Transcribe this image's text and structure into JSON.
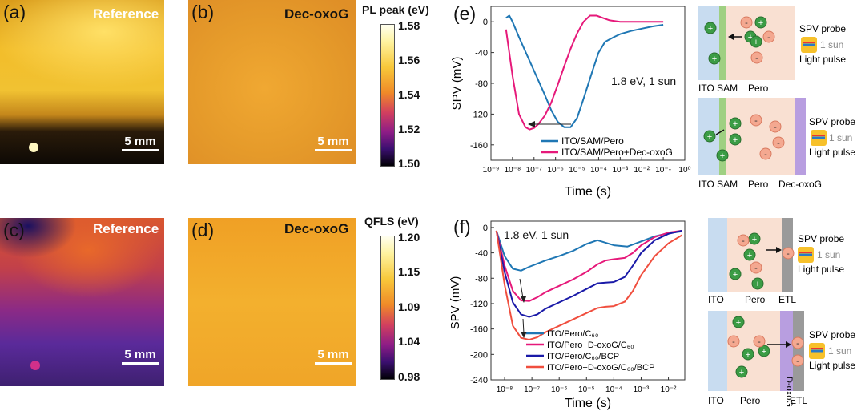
{
  "figure": {
    "panels": {
      "a": {
        "label": "(a)",
        "title": "Reference",
        "scale": "5 mm"
      },
      "b": {
        "label": "(b)",
        "title": "Dec-oxoG",
        "scale": "5 mm"
      },
      "c": {
        "label": "(c)",
        "title": "Reference",
        "scale": "5 mm"
      },
      "d": {
        "label": "(d)",
        "title": "Dec-oxoG",
        "scale": "5 mm"
      },
      "e": {
        "label": "(e)"
      },
      "f": {
        "label": "(f)"
      }
    },
    "colorbar_top": {
      "title": "PL peak (eV)",
      "ticks": [
        "1.58",
        "1.56",
        "1.54",
        "1.52",
        "1.50"
      ]
    },
    "colorbar_bottom": {
      "title": "QFLS (eV)",
      "ticks": [
        "1.20",
        "1.15",
        "1.09",
        "1.04",
        "0.98"
      ]
    },
    "schematic_e1": {
      "left": "ITO SAM",
      "middle": "Pero",
      "probe": "SPV probe",
      "sun": "1 sun",
      "pulse": "Light pulse"
    },
    "schematic_e2": {
      "left": "ITO SAM",
      "middle": "Pero",
      "right": "Dec-oxoG",
      "probe": "SPV probe",
      "sun": "1 sun",
      "pulse": "Light pulse"
    },
    "schematic_f1": {
      "left": "ITO",
      "middle": "Pero",
      "right": "ETL",
      "probe": "SPV probe",
      "sun": "1 sun",
      "pulse": "Light pulse"
    },
    "schematic_f2": {
      "left": "ITO",
      "middle": "Pero",
      "right": "ETL",
      "vertical": "D-oxoG",
      "probe": "SPV probe",
      "sun": "1 sun",
      "pulse": "Light pulse"
    }
  },
  "chart_data": [
    {
      "id": "e",
      "type": "line",
      "xscale": "log",
      "xlabel": "Time (s)",
      "ylabel": "SPV (mV)",
      "xlim": [
        -9,
        0
      ],
      "ylim": [
        -180,
        20
      ],
      "xtick_exps": [
        -9,
        -8,
        -7,
        -6,
        -5,
        -4,
        -3,
        -2,
        -1,
        0
      ],
      "xtick_labels": [
        "10⁻⁹",
        "10⁻⁸",
        "10⁻⁷",
        "10⁻⁶",
        "10⁻⁵",
        "10⁻⁴",
        "10⁻³",
        "10⁻²",
        "10⁻¹",
        "10⁰"
      ],
      "yticks": [
        0,
        -40,
        -80,
        -120,
        -160
      ],
      "annotation": "1.8 eV, 1 sun",
      "series": [
        {
          "name": "ITO/SAM/Pero",
          "color": "#1f77b4",
          "x": [
            -8.3,
            -8.15,
            -8.0,
            -7.7,
            -7.3,
            -6.9,
            -6.5,
            -6.2,
            -5.9,
            -5.6,
            -5.3,
            -5.0,
            -4.7,
            -4.3,
            -4.0,
            -3.7,
            -3.3,
            -3.0,
            -2.5,
            -2.0,
            -1.5,
            -1.0
          ],
          "y": [
            5,
            8,
            0,
            -20,
            -45,
            -70,
            -95,
            -115,
            -130,
            -137,
            -137,
            -125,
            -100,
            -65,
            -40,
            -26,
            -20,
            -16,
            -12,
            -9,
            -6,
            -4
          ]
        },
        {
          "name": "ITO/SAM/Pero+Dec-oxoG",
          "color": "#e6197a",
          "x": [
            -8.3,
            -8.0,
            -7.7,
            -7.4,
            -7.2,
            -7.0,
            -6.8,
            -6.5,
            -6.2,
            -5.9,
            -5.6,
            -5.3,
            -5.0,
            -4.7,
            -4.4,
            -4.1,
            -3.8,
            -3.5,
            -3.0,
            -2.5,
            -2.0,
            -1.5,
            -1.0
          ],
          "y": [
            -10,
            -70,
            -120,
            -137,
            -140,
            -138,
            -133,
            -122,
            -105,
            -82,
            -58,
            -35,
            -15,
            0,
            8,
            8,
            5,
            2,
            0,
            0,
            0,
            0,
            0
          ]
        }
      ]
    },
    {
      "id": "f",
      "type": "line",
      "xscale": "log",
      "xlabel": "Time (s)",
      "ylabel": "SPV (mV)",
      "xlim": [
        -8.5,
        -1.4
      ],
      "ylim": [
        -240,
        10
      ],
      "xtick_exps": [
        -8,
        -7,
        -6,
        -5,
        -4,
        -3,
        -2
      ],
      "xtick_labels": [
        "10⁻⁸",
        "10⁻⁷",
        "10⁻⁶",
        "10⁻⁵",
        "10⁻⁴",
        "10⁻³",
        "10⁻²"
      ],
      "yticks": [
        0,
        -40,
        -80,
        -120,
        -160,
        -200,
        -240
      ],
      "annotation": "1.8 eV, 1 sun",
      "series": [
        {
          "name": "ITO/Pero/C₆₀",
          "color": "#1f77b4",
          "x": [
            -8.3,
            -8.0,
            -7.7,
            -7.4,
            -7.1,
            -6.8,
            -6.5,
            -6.0,
            -5.5,
            -5.0,
            -4.6,
            -4.3,
            -4.0,
            -3.5,
            -3.0,
            -2.5,
            -2.0,
            -1.5
          ],
          "y": [
            -5,
            -45,
            -65,
            -68,
            -62,
            -57,
            -52,
            -45,
            -37,
            -26,
            -20,
            -24,
            -28,
            -30,
            -22,
            -14,
            -9,
            -6
          ]
        },
        {
          "name": "ITO/Pero+D-oxoG/C₆₀",
          "color": "#e6197a",
          "x": [
            -8.3,
            -8.0,
            -7.7,
            -7.4,
            -7.1,
            -6.8,
            -6.5,
            -6.0,
            -5.5,
            -5.0,
            -4.6,
            -4.3,
            -4.0,
            -3.6,
            -3.3,
            -3.0,
            -2.5,
            -2.0,
            -1.5
          ],
          "y": [
            -5,
            -60,
            -100,
            -115,
            -116,
            -110,
            -102,
            -92,
            -82,
            -70,
            -58,
            -52,
            -50,
            -48,
            -40,
            -28,
            -15,
            -8,
            -5
          ]
        },
        {
          "name": "ITO/Pero/C₆₀/BCP",
          "color": "#1a1aa8",
          "x": [
            -8.3,
            -8.0,
            -7.7,
            -7.4,
            -7.1,
            -6.8,
            -6.5,
            -6.0,
            -5.5,
            -5.0,
            -4.6,
            -4.3,
            -4.0,
            -3.6,
            -3.3,
            -3.0,
            -2.5,
            -2.0,
            -1.5
          ],
          "y": [
            -5,
            -70,
            -118,
            -137,
            -141,
            -137,
            -128,
            -118,
            -108,
            -97,
            -88,
            -87,
            -86,
            -78,
            -60,
            -40,
            -20,
            -10,
            -5
          ]
        },
        {
          "name": "ITO/Pero+D-oxoG/C₆₀/BCP",
          "color": "#f04e3e",
          "x": [
            -8.3,
            -8.0,
            -7.7,
            -7.4,
            -7.1,
            -6.8,
            -6.5,
            -6.0,
            -5.5,
            -5.0,
            -4.6,
            -4.3,
            -4.0,
            -3.6,
            -3.3,
            -3.0,
            -2.5,
            -2.0,
            -1.5
          ],
          "y": [
            -5,
            -90,
            -155,
            -174,
            -177,
            -173,
            -165,
            -155,
            -145,
            -135,
            -127,
            -125,
            -124,
            -117,
            -100,
            -75,
            -45,
            -25,
            -12
          ]
        }
      ]
    }
  ]
}
